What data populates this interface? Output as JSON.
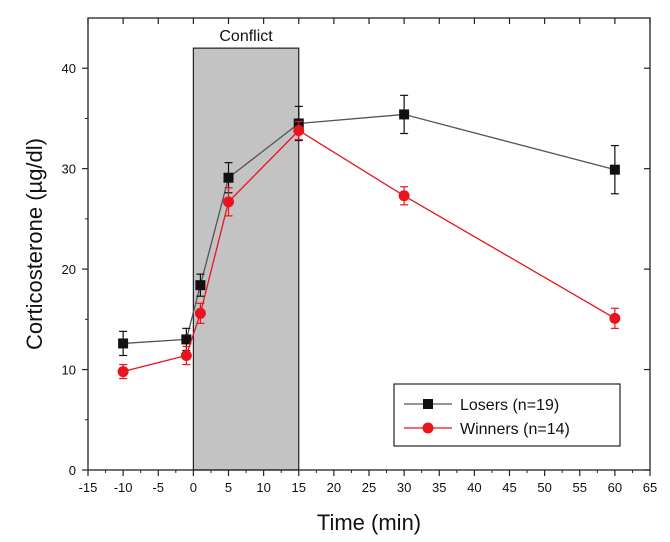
{
  "chart_data": {
    "type": "line",
    "xlabel": "Time (min)",
    "ylabel": "Corticosterone (µg/dl)",
    "xlim": [
      -15,
      65
    ],
    "ylim": [
      0,
      45
    ],
    "xticks": [
      -15,
      -10,
      -5,
      0,
      5,
      10,
      15,
      20,
      25,
      30,
      35,
      40,
      45,
      50,
      55,
      60,
      65
    ],
    "yticks": [
      0,
      10,
      20,
      30,
      40
    ],
    "annotation": {
      "label": "Conflict",
      "x_range": [
        0,
        15
      ],
      "fill": "#c3c3c3"
    },
    "legend_position": "bottom-right",
    "series": [
      {
        "name": "Losers (n=19)",
        "color": "#111111",
        "line_color": "#555555",
        "marker": "square",
        "x": [
          -10,
          -1,
          1,
          5,
          15,
          30,
          60
        ],
        "y": [
          12.6,
          13.0,
          18.4,
          29.1,
          34.5,
          35.4,
          29.9
        ],
        "error": [
          1.2,
          1.1,
          1.1,
          1.5,
          1.7,
          1.9,
          2.4
        ]
      },
      {
        "name": "Winners (n=14)",
        "color": "#e8141e",
        "line_color": "#e8141e",
        "marker": "circle",
        "x": [
          -10,
          -1,
          1,
          5,
          15,
          30,
          60
        ],
        "y": [
          9.8,
          11.4,
          15.6,
          26.7,
          33.8,
          27.3,
          15.1
        ],
        "error": [
          0.7,
          0.9,
          1.0,
          1.4,
          0.9,
          0.9,
          1.0
        ]
      }
    ]
  }
}
